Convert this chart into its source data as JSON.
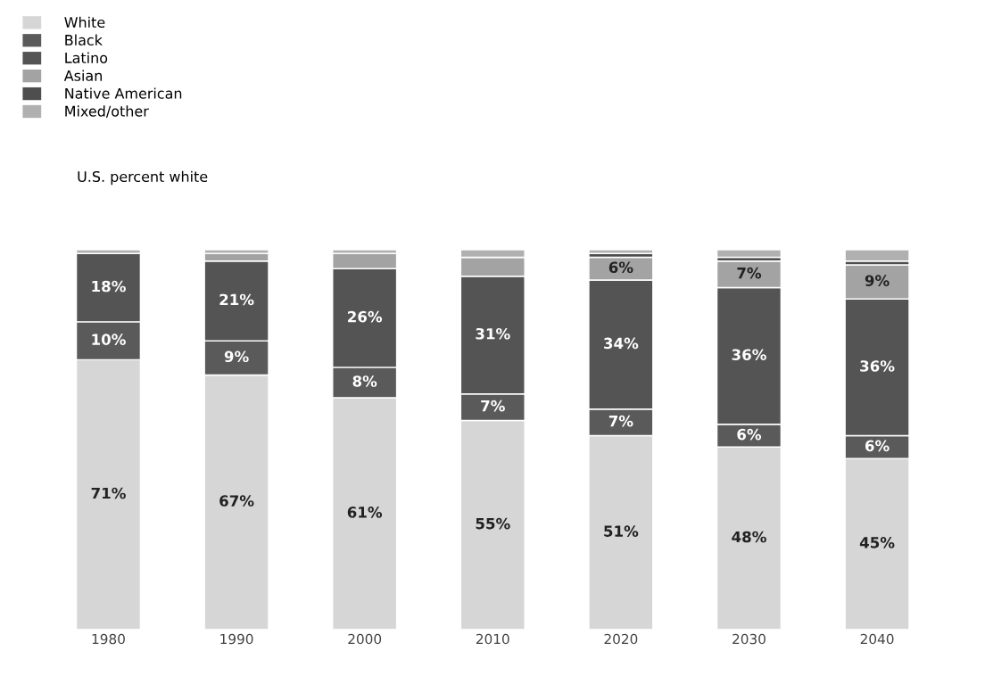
{
  "chart_data": {
    "type": "bar",
    "stacked": true,
    "legend": "top left",
    "categories": [
      "1980",
      "1990",
      "2000",
      "2010",
      "2020",
      "2030",
      "2040"
    ],
    "series": [
      {
        "name": "White",
        "color": "#d6d6d6",
        "values": [
          71,
          67,
          61,
          55,
          51,
          48,
          45
        ],
        "value_labels": [
          "71%",
          "67%",
          "61%",
          "55%",
          "51%",
          "48%",
          "45%"
        ]
      },
      {
        "name": "Black",
        "color": "#5a5a5a",
        "values": [
          10,
          9,
          8,
          7,
          7,
          6,
          6
        ],
        "value_labels": [
          "10%",
          "9%",
          "8%",
          "7%",
          "7%",
          "6%",
          "6%"
        ]
      },
      {
        "name": "Latino",
        "color": "#545454",
        "values": [
          18,
          21,
          26,
          31,
          34,
          36,
          36
        ],
        "value_labels": [
          "18%",
          "21%",
          "26%",
          "31%",
          "34%",
          "36%",
          "36%"
        ]
      },
      {
        "name": "Asian",
        "color": "#a3a3a3",
        "values": [
          0,
          2,
          4,
          5,
          6,
          7,
          9
        ],
        "value_labels": [
          null,
          null,
          null,
          null,
          "6%",
          "7%",
          "9%"
        ]
      },
      {
        "name": "Native American",
        "color": "#4e4e4e",
        "values": [
          0,
          0,
          0,
          0,
          1,
          1,
          1
        ]
      },
      {
        "name": "Mixed/other",
        "color": "#b0b0b0",
        "values": [
          1,
          1,
          1,
          2,
          1,
          2,
          3
        ]
      }
    ],
    "annotations": [
      "U.S. percent white"
    ]
  }
}
